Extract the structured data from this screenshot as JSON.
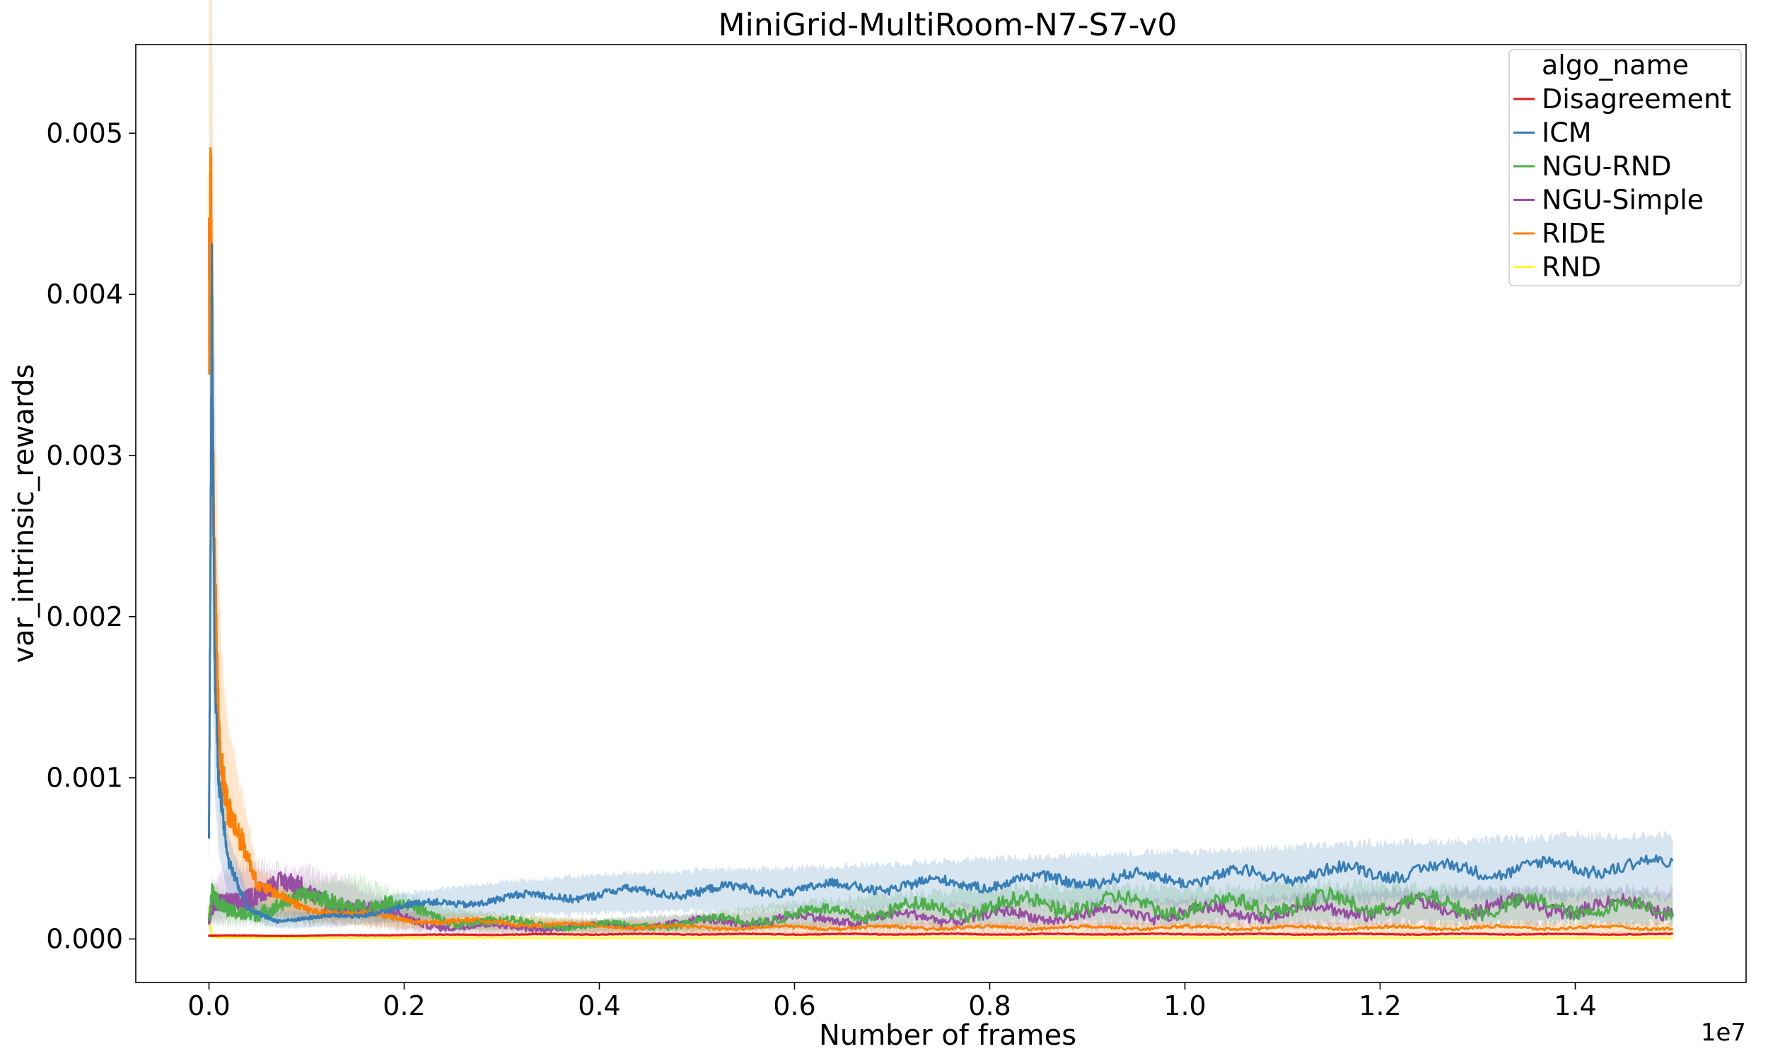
{
  "chart_data": {
    "type": "line",
    "title": "MiniGrid-MultiRoom-N7-S7-v0",
    "xlabel": "Number of frames",
    "ylabel": "var_intrinsic_rewards",
    "x_offset_label": "1e7",
    "xlim": [
      -0.075,
      1.575
    ],
    "ylim": [
      -0.00027,
      0.00555
    ],
    "x_ticks": [
      0.0,
      0.2,
      0.4,
      0.6,
      0.8,
      1.0,
      1.2,
      1.4
    ],
    "x_tick_labels": [
      "0.0",
      "0.2",
      "0.4",
      "0.6",
      "0.8",
      "1.0",
      "1.2",
      "1.4"
    ],
    "y_ticks": [
      0.0,
      0.001,
      0.002,
      0.003,
      0.004,
      0.005
    ],
    "y_tick_labels": [
      "0.000",
      "0.001",
      "0.002",
      "0.003",
      "0.004",
      "0.005"
    ],
    "grid": false,
    "legend": {
      "title": "algo_name",
      "placement": "top-right"
    },
    "series": [
      {
        "name": "Disagreement",
        "color": "#e41a1c",
        "x": [
          0,
          0.005,
          0.02,
          0.1,
          0.2,
          0.4,
          0.6,
          0.8,
          1.0,
          1.2,
          1.4,
          1.5
        ],
        "y": [
          2e-05,
          2e-05,
          2e-05,
          2e-05,
          2.5e-05,
          3e-05,
          3e-05,
          3e-05,
          3e-05,
          3e-05,
          3e-05,
          3e-05
        ]
      },
      {
        "name": "ICM",
        "color": "#377eb8",
        "x": [
          0,
          0.003,
          0.006,
          0.01,
          0.02,
          0.04,
          0.07,
          0.1,
          0.15,
          0.2,
          0.3,
          0.4,
          0.5,
          0.6,
          0.7,
          0.8,
          0.9,
          1.0,
          1.1,
          1.2,
          1.3,
          1.4,
          1.5
        ],
        "y": [
          0.0006,
          0.0037,
          0.0015,
          0.0009,
          0.00045,
          0.0002,
          0.00012,
          0.00012,
          0.00015,
          0.0002,
          0.00025,
          0.00028,
          0.0003,
          0.00031,
          0.00033,
          0.00035,
          0.00037,
          0.00038,
          0.0004,
          0.00042,
          0.00043,
          0.00045,
          0.00045
        ]
      },
      {
        "name": "NGU-RND",
        "color": "#4daf4a",
        "x": [
          0,
          0.003,
          0.01,
          0.02,
          0.05,
          0.1,
          0.15,
          0.2,
          0.25,
          0.3,
          0.4,
          0.5,
          0.6,
          0.7,
          0.8,
          0.9,
          1.0,
          1.1,
          1.2,
          1.3,
          1.4,
          1.5
        ],
        "y": [
          0.0001,
          0.00025,
          0.0002,
          0.00018,
          0.0002,
          0.00022,
          0.00025,
          0.00018,
          0.00012,
          0.0001,
          8e-05,
          0.0001,
          0.00015,
          0.00018,
          0.0002,
          0.00022,
          0.0002,
          0.00022,
          0.00022,
          0.0002,
          0.0002,
          0.00018
        ]
      },
      {
        "name": "NGU-Simple",
        "color": "#984ea3",
        "x": [
          0,
          0.003,
          0.01,
          0.02,
          0.05,
          0.1,
          0.15,
          0.2,
          0.25,
          0.3,
          0.4,
          0.5,
          0.6,
          0.7,
          0.8,
          0.9,
          1.0,
          1.1,
          1.2,
          1.3,
          1.4,
          1.5
        ],
        "y": [
          0.0001,
          0.0002,
          0.00025,
          0.00028,
          0.0003,
          0.00028,
          0.00022,
          0.00012,
          8e-05,
          7e-05,
          8e-05,
          0.0001,
          0.00012,
          0.00013,
          0.00014,
          0.00015,
          0.00016,
          0.00017,
          0.00019,
          0.0002,
          0.0002,
          0.0002
        ]
      },
      {
        "name": "RIDE",
        "color": "#ff7f00",
        "x": [
          0,
          0.002,
          0.004,
          0.006,
          0.01,
          0.015,
          0.02,
          0.03,
          0.04,
          0.05,
          0.07,
          0.1,
          0.15,
          0.2,
          0.3,
          0.4,
          0.5,
          0.6,
          0.8,
          1.0,
          1.2,
          1.4,
          1.5
        ],
        "y": [
          0.0044,
          0.0051,
          0.0035,
          0.0025,
          0.0015,
          0.0011,
          0.0009,
          0.0007,
          0.0005,
          0.0003,
          0.00025,
          0.0002,
          0.00015,
          0.00012,
          0.0001,
          8e-05,
          7e-05,
          7e-05,
          7e-05,
          7e-05,
          7e-05,
          7e-05,
          7e-05
        ]
      },
      {
        "name": "RND",
        "color": "#ffff33",
        "x": [
          0,
          0.003,
          0.1,
          0.5,
          1.0,
          1.5
        ],
        "y": [
          0.0002,
          1e-05,
          5e-06,
          5e-06,
          5e-06,
          5e-06
        ]
      }
    ]
  }
}
